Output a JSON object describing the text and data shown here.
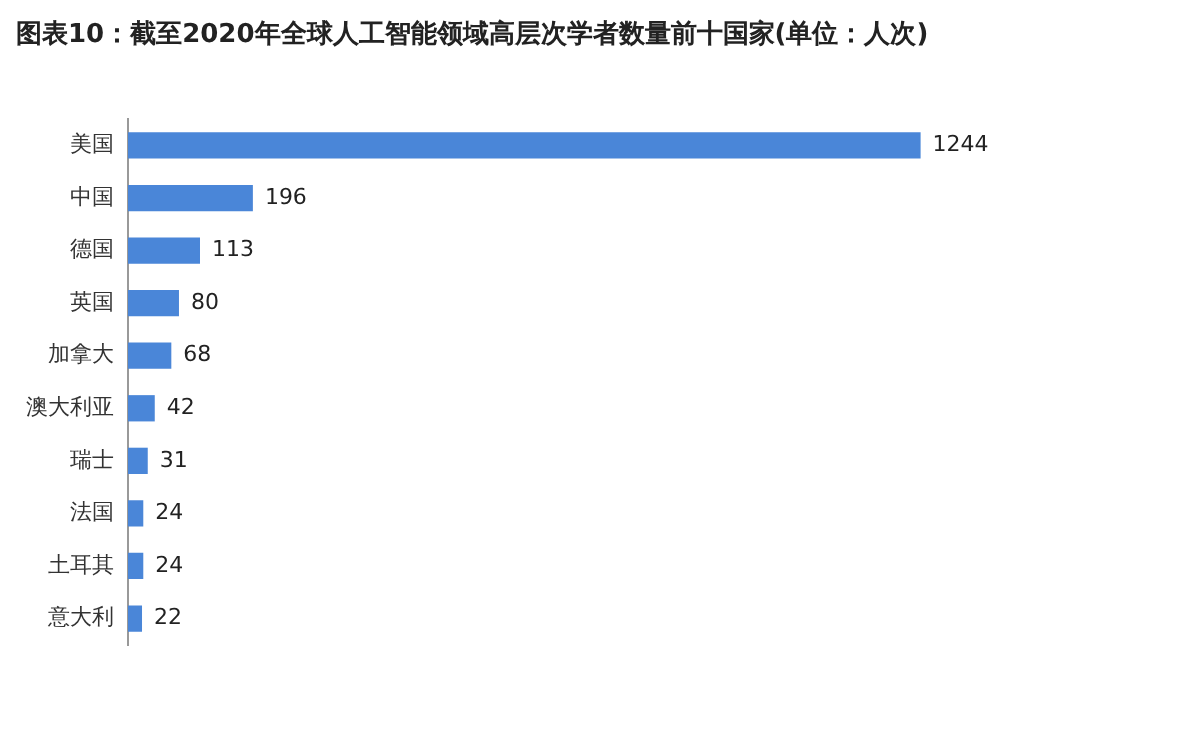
{
  "chart_data": {
    "type": "bar",
    "orientation": "horizontal",
    "title": "图表10：截至2020年全球人工智能领域高层次学者数量前十国家(单位：人次)",
    "categories": [
      "美国",
      "中国",
      "德国",
      "英国",
      "加拿大",
      "澳大利亚",
      "瑞士",
      "法国",
      "土耳其",
      "意大利"
    ],
    "values": [
      1244,
      196,
      113,
      80,
      68,
      42,
      31,
      24,
      24,
      22
    ],
    "color": "#4a86d8",
    "data_labels": true,
    "legend": false,
    "tick_labels": "y"
  }
}
